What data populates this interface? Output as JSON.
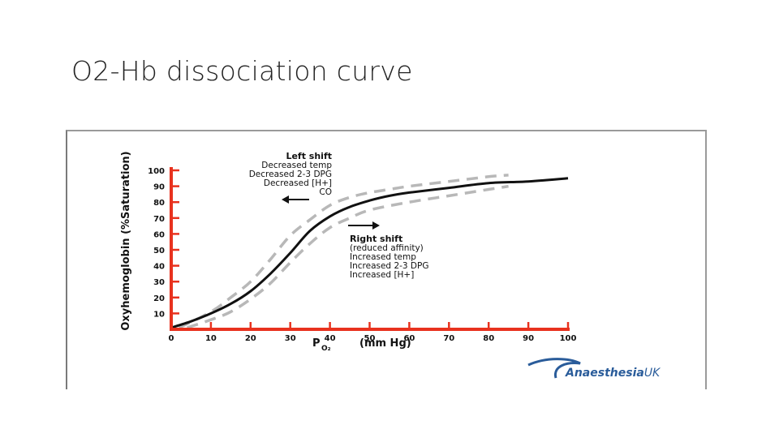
{
  "slide": {
    "title": "O2-Hb dissociation curve"
  },
  "chart_data": {
    "type": "line",
    "title": "",
    "xlabel": "P",
    "xlabel_sub": "O₂",
    "xlabel_unit": "(mm Hg)",
    "ylabel": "Oxyhemoglobin (%Saturation)",
    "xlim": [
      0,
      100
    ],
    "ylim": [
      0,
      100
    ],
    "x_ticks": [
      "0",
      "10",
      "20",
      "30",
      "40",
      "50",
      "60",
      "70",
      "80",
      "90",
      "100"
    ],
    "y_ticks": [
      "10",
      "20",
      "30",
      "40",
      "50",
      "60",
      "70",
      "80",
      "90",
      "100"
    ],
    "grid": false,
    "axis_color": "#e8321e",
    "series": [
      {
        "style": "solid",
        "color": "#111111",
        "x": [
          0,
          5,
          10,
          15,
          20,
          25,
          30,
          35,
          40,
          45,
          50,
          55,
          60,
          70,
          80,
          90,
          100
        ],
        "y": [
          1,
          5,
          10,
          16,
          24,
          35,
          48,
          62,
          71,
          77,
          81,
          84,
          86,
          89,
          92,
          93,
          95
        ]
      },
      {
        "style": "dashed",
        "color": "#b8b8b8",
        "x": [
          2,
          10,
          15,
          20,
          25,
          30,
          35,
          40,
          45,
          50,
          55,
          60,
          70,
          80,
          85
        ],
        "y": [
          1,
          11,
          20,
          30,
          44,
          59,
          69,
          78,
          83,
          86,
          88,
          90,
          93,
          96,
          97
        ]
      },
      {
        "style": "dashed",
        "color": "#b8b8b8",
        "x": [
          4,
          10,
          15,
          20,
          25,
          30,
          35,
          40,
          45,
          50,
          60,
          70,
          80,
          85
        ],
        "y": [
          1,
          6,
          11,
          19,
          29,
          42,
          54,
          64,
          70,
          75,
          80,
          84,
          88,
          90
        ]
      }
    ],
    "annotations": {
      "left_shift": {
        "heading": "Left shift",
        "lines": [
          "Decreased temp",
          "Decreased 2-3 DPG",
          "Decreased [H+]",
          "CO"
        ]
      },
      "right_shift": {
        "heading": "Right shift",
        "lines": [
          "(reduced affinity)",
          "Increased temp",
          "Increased 2-3 DPG",
          "Increased [H+]"
        ]
      }
    },
    "logo": {
      "text": "Anaesthesia",
      "accent": "UK",
      "color": "#2a5c9a"
    }
  }
}
